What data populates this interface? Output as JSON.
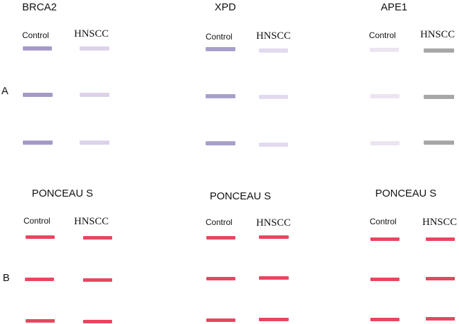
{
  "panel_a": {
    "label": "A",
    "blots": [
      {
        "title": "BRCA2",
        "control_label": "Control",
        "hnscc_label": "HNSCC",
        "control_color": "#a59ac6",
        "hnscc_color": "#ddd2ea"
      },
      {
        "title": "XPD",
        "control_label": "Control",
        "hnscc_label": "HNSCC",
        "control_color": "#a99fcb",
        "hnscc_color": "#e2daef"
      },
      {
        "title": "APE1",
        "control_label": "Control",
        "hnscc_label": "HNSCC",
        "control_color": "#ece4f0",
        "hnscc_color": "#a8a6a6"
      }
    ]
  },
  "panel_b": {
    "label": "B",
    "blots": [
      {
        "title": "PONCEAU S",
        "control_label": "Control",
        "hnscc_label": "HNSCC",
        "band_color": "#e9455f"
      },
      {
        "title": "PONCEAU S",
        "control_label": "Control",
        "hnscc_label": "HNSCC",
        "band_color": "#e9455f"
      },
      {
        "title": "PONCEAU S",
        "control_label": "Control",
        "hnscc_label": "HNSCC",
        "band_color": "#e9455f"
      }
    ]
  }
}
